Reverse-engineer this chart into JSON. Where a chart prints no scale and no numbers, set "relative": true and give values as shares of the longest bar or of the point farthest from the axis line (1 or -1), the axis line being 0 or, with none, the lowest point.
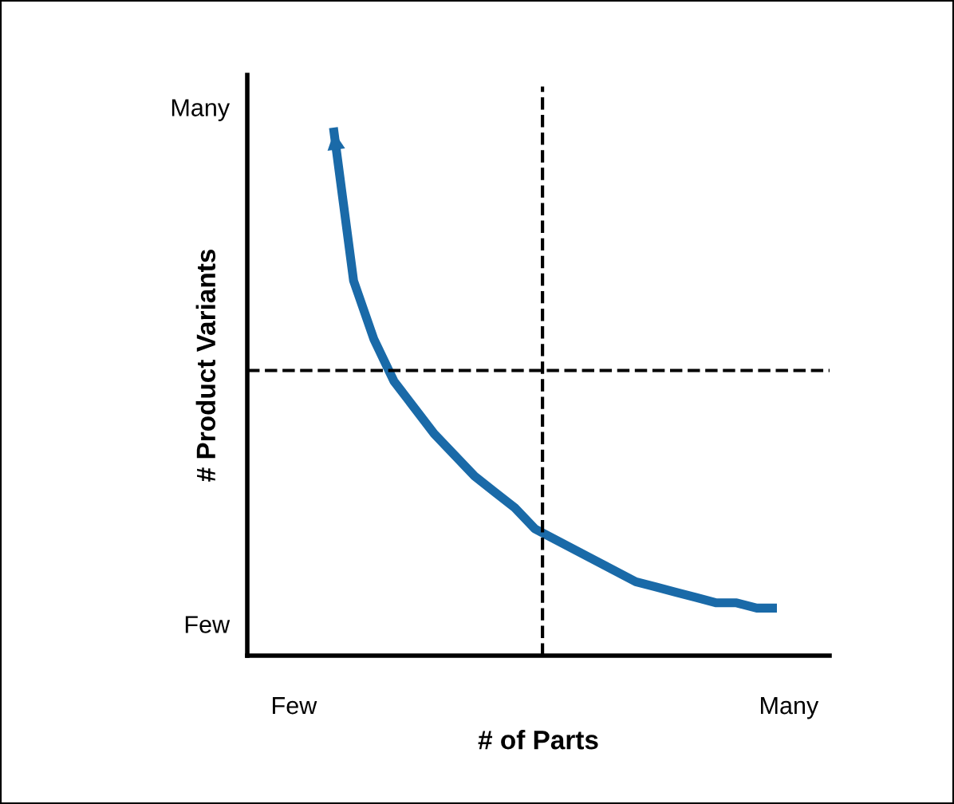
{
  "chart_data": {
    "type": "line",
    "xlabel": "# of Parts",
    "ylabel": "# Product Variants",
    "relative": true,
    "categories": [
      null,
      null,
      null,
      null,
      null,
      null,
      null,
      null,
      null,
      null,
      null,
      null,
      null,
      null,
      null,
      null,
      null,
      null,
      null,
      null,
      null,
      null,
      null
    ],
    "series": [
      {
        "color": "#1a6aa8",
        "values": [
          1.0,
          0.71,
          0.6,
          0.52,
          0.47,
          0.42,
          0.38,
          0.34,
          0.31,
          0.28,
          0.24,
          0.22,
          0.2,
          0.18,
          0.16,
          0.14,
          0.13,
          0.12,
          0.11,
          0.1,
          0.1,
          0.09,
          0.09
        ]
      }
    ],
    "ref_lines": [
      {
        "axis": "y",
        "value": 0.54,
        "color": "#000000",
        "line_style": "dashed"
      }
    ],
    "annotations": [
      "Many",
      "Few",
      "Few",
      "Many"
    ],
    "grid": false,
    "marker": "none",
    "line_style": "solid"
  }
}
